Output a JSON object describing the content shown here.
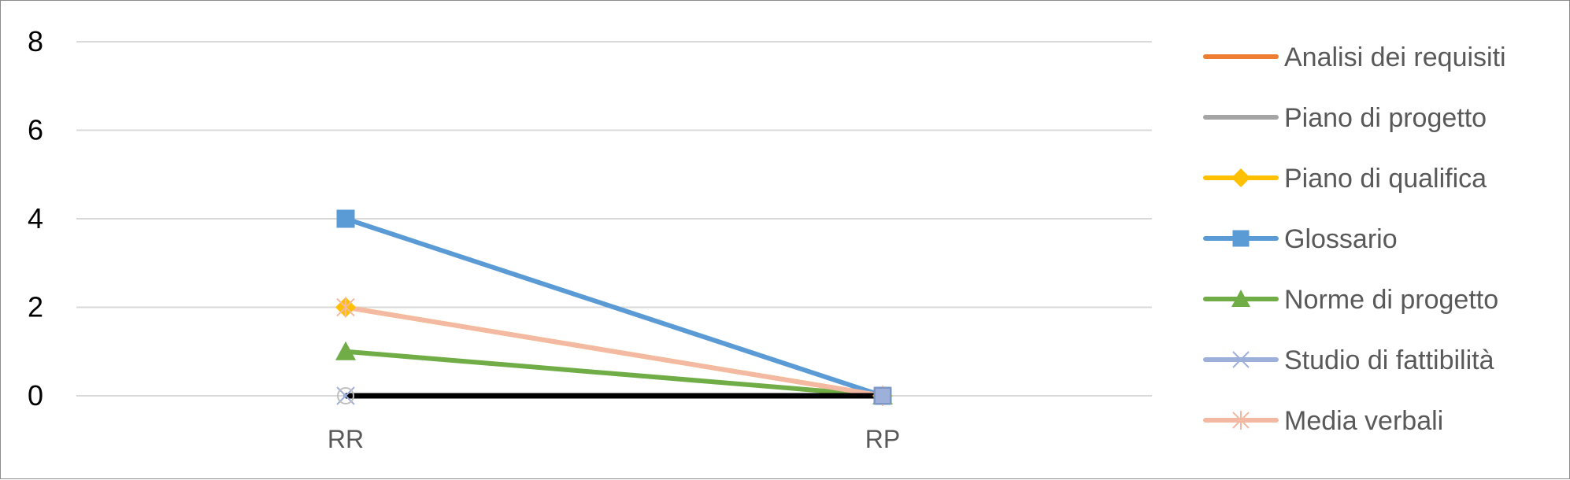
{
  "chart_data": {
    "type": "line",
    "title": "",
    "xlabel": "",
    "ylabel": "",
    "categories": [
      "RR",
      "RP"
    ],
    "y_ticks": [
      "0",
      "2",
      "4",
      "6",
      "8"
    ],
    "ylim": [
      0,
      8
    ],
    "grid": true,
    "legend_position": "right",
    "series": [
      {
        "name": "Analisi dei requisiti",
        "values": [
          0,
          0
        ],
        "color": "#ED7D31",
        "marker": "none"
      },
      {
        "name": "Piano di progetto",
        "values": [
          0,
          0
        ],
        "color": "#A5A5A5",
        "marker": "none"
      },
      {
        "name": "Piano di qualifica",
        "values": [
          2,
          0
        ],
        "color": "#FFC000",
        "marker": "diamond"
      },
      {
        "name": "Glossario",
        "values": [
          4,
          0
        ],
        "color": "#5B9BD5",
        "marker": "square"
      },
      {
        "name": "Norme di progetto",
        "values": [
          1,
          0
        ],
        "color": "#70AD47",
        "marker": "triangle"
      },
      {
        "name": "Studio di fattibilità",
        "values": [
          0,
          0
        ],
        "color": "#9DB0D9",
        "marker": "x"
      },
      {
        "name": "Media verbali",
        "values": [
          2,
          0
        ],
        "color": "#F4B9A2",
        "marker": "asterisk"
      }
    ],
    "extra_line": {
      "values": [
        0,
        0
      ],
      "color": "#000000",
      "legend": false
    }
  }
}
